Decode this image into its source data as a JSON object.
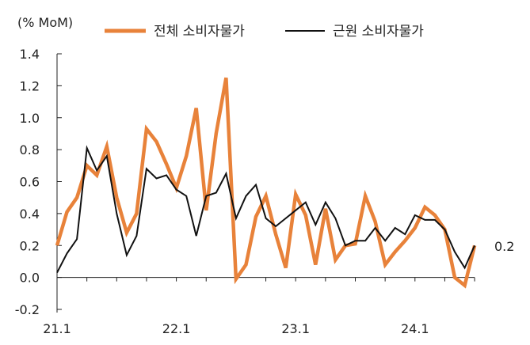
{
  "chart_data": {
    "type": "line",
    "unit_label": "(% MoM)",
    "xlabel": "",
    "ylabel": "",
    "ylim": [
      -0.2,
      1.4
    ],
    "yticks": [
      1.4,
      1.2,
      1.0,
      0.8,
      0.6,
      0.4,
      0.2,
      0.0,
      -0.2
    ],
    "ytick_labels": [
      "1.4",
      "1.2",
      "1.0",
      "0.8",
      "0.6",
      "0.4",
      "0.2",
      "0.0",
      "-0.2"
    ],
    "x_ticks": [
      {
        "index": 0,
        "label": "21.1"
      },
      {
        "index": 12,
        "label": "22.1"
      },
      {
        "index": 24,
        "label": "23.1"
      },
      {
        "index": 36,
        "label": "24.1"
      }
    ],
    "grid": false,
    "legend_position": "top",
    "end_annotation": "0.2",
    "series": [
      {
        "name": "전체 소비자물가",
        "color": "#E8823A",
        "values": [
          0.2,
          0.41,
          0.5,
          0.7,
          0.64,
          0.82,
          0.5,
          0.28,
          0.4,
          0.93,
          0.85,
          0.71,
          0.56,
          0.76,
          1.06,
          0.42,
          0.9,
          1.25,
          -0.01,
          0.08,
          0.38,
          0.51,
          0.27,
          0.06,
          0.52,
          0.39,
          0.08,
          0.43,
          0.11,
          0.2,
          0.21,
          0.51,
          0.35,
          0.08,
          0.16,
          0.23,
          0.31,
          0.44,
          0.39,
          0.3,
          0.0,
          -0.05,
          0.2
        ]
      },
      {
        "name": "근원 소비자물가",
        "color": "#111111",
        "values": [
          0.03,
          0.15,
          0.24,
          0.81,
          0.67,
          0.76,
          0.4,
          0.14,
          0.26,
          0.68,
          0.62,
          0.64,
          0.55,
          0.51,
          0.26,
          0.51,
          0.53,
          0.65,
          0.37,
          0.51,
          0.58,
          0.37,
          0.32,
          0.37,
          0.42,
          0.47,
          0.33,
          0.47,
          0.37,
          0.2,
          0.23,
          0.23,
          0.31,
          0.23,
          0.31,
          0.27,
          0.39,
          0.36,
          0.36,
          0.3,
          0.16,
          0.06,
          0.2
        ]
      }
    ]
  }
}
